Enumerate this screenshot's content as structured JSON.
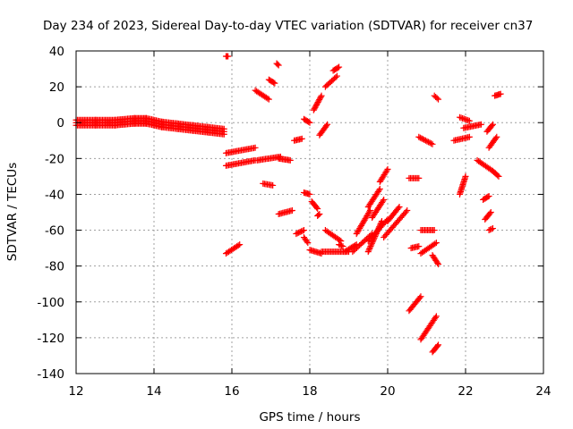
{
  "chart_data": {
    "type": "scatter",
    "title": "Day 234 of 2023, Sidereal Day-to-day VTEC variation (SDTVAR) for receiver cn37",
    "xlabel": "GPS time / hours",
    "ylabel": "SDTVAR / TECUs",
    "xlim": [
      12,
      24
    ],
    "ylim": [
      -140,
      40
    ],
    "xticks": [
      12,
      14,
      16,
      18,
      20,
      22,
      24
    ],
    "yticks": [
      -140,
      -120,
      -100,
      -80,
      -60,
      -40,
      -20,
      0,
      20,
      40
    ],
    "xtick_labels": [
      "12",
      "14",
      "16",
      "18",
      "20",
      "22",
      "24"
    ],
    "ytick_labels": [
      "-140",
      "-120",
      "-100",
      "-80",
      "-60",
      "-40",
      "-20",
      "0",
      "20",
      "40"
    ],
    "grid": true,
    "marker": "+",
    "color": "#ff0000",
    "series": [
      {
        "name": "main-band",
        "x": [
          12.0,
          12.5,
          13.0,
          13.5,
          13.8,
          14.2,
          14.6,
          15.0,
          15.4,
          15.8
        ],
        "y": [
          0,
          0,
          0,
          1,
          1,
          -1,
          -2,
          -3,
          -4,
          -5
        ]
      },
      {
        "name": "s01",
        "x": [
          15.85,
          16.6
        ],
        "y": [
          -17,
          -14
        ]
      },
      {
        "name": "s02",
        "x": [
          15.85,
          16.6
        ],
        "y": [
          -24,
          -21
        ]
      },
      {
        "name": "s03",
        "x": [
          15.85,
          16.2
        ],
        "y": [
          -73,
          -68
        ]
      },
      {
        "name": "s04",
        "x": [
          15.85,
          15.9
        ],
        "y": [
          37,
          37
        ]
      },
      {
        "name": "s05",
        "x": [
          16.6,
          16.95
        ],
        "y": [
          18,
          13
        ]
      },
      {
        "name": "s06",
        "x": [
          16.65,
          17.25
        ],
        "y": [
          -21,
          -19
        ]
      },
      {
        "name": "s07",
        "x": [
          16.8,
          17.05
        ],
        "y": [
          -34,
          -35
        ]
      },
      {
        "name": "s08",
        "x": [
          16.95,
          17.1
        ],
        "y": [
          24,
          22
        ]
      },
      {
        "name": "s09",
        "x": [
          17.15,
          17.2
        ],
        "y": [
          33,
          32
        ]
      },
      {
        "name": "s10",
        "x": [
          17.2,
          17.5
        ],
        "y": [
          -20,
          -21
        ]
      },
      {
        "name": "s11",
        "x": [
          17.2,
          17.55
        ],
        "y": [
          -51,
          -49
        ]
      },
      {
        "name": "s12",
        "x": [
          17.6,
          17.8
        ],
        "y": [
          -10,
          -9
        ]
      },
      {
        "name": "s13",
        "x": [
          17.65,
          17.85
        ],
        "y": [
          -62,
          -60
        ]
      },
      {
        "name": "s14",
        "x": [
          17.85,
          17.95
        ],
        "y": [
          -64,
          -67
        ]
      },
      {
        "name": "s15",
        "x": [
          17.85,
          18.0
        ],
        "y": [
          2,
          0
        ]
      },
      {
        "name": "s16",
        "x": [
          17.85,
          18.0
        ],
        "y": [
          -39,
          -40
        ]
      },
      {
        "name": "s17",
        "x": [
          18.0,
          18.3
        ],
        "y": [
          -71,
          -73
        ]
      },
      {
        "name": "s18",
        "x": [
          18.05,
          18.2
        ],
        "y": [
          -44,
          -48
        ]
      },
      {
        "name": "s19",
        "x": [
          18.1,
          18.3
        ],
        "y": [
          7,
          15
        ]
      },
      {
        "name": "s20",
        "x": [
          18.2,
          18.25
        ],
        "y": [
          -52,
          -51
        ]
      },
      {
        "name": "s21",
        "x": [
          18.25,
          18.45
        ],
        "y": [
          -7,
          -1
        ]
      },
      {
        "name": "s22",
        "x": [
          18.4,
          18.8
        ],
        "y": [
          -60,
          -66
        ]
      },
      {
        "name": "s23",
        "x": [
          18.4,
          18.7
        ],
        "y": [
          20,
          26
        ]
      },
      {
        "name": "s24",
        "x": [
          18.3,
          19.0
        ],
        "y": [
          -72,
          -72
        ]
      },
      {
        "name": "s25",
        "x": [
          18.6,
          18.75
        ],
        "y": [
          29,
          31
        ]
      },
      {
        "name": "s26",
        "x": [
          18.75,
          18.85
        ],
        "y": [
          -68,
          -69
        ]
      },
      {
        "name": "s27",
        "x": [
          18.9,
          19.2
        ],
        "y": [
          -72,
          -68
        ]
      },
      {
        "name": "s28",
        "x": [
          19.1,
          19.6
        ],
        "y": [
          -72,
          -62
        ]
      },
      {
        "name": "s29",
        "x": [
          19.2,
          19.55
        ],
        "y": [
          -62,
          -49
        ]
      },
      {
        "name": "s30",
        "x": [
          19.5,
          19.8
        ],
        "y": [
          -47,
          -37
        ]
      },
      {
        "name": "s31",
        "x": [
          19.5,
          19.85
        ],
        "y": [
          -72,
          -55
        ]
      },
      {
        "name": "s32",
        "x": [
          19.6,
          19.9
        ],
        "y": [
          -53,
          -43
        ]
      },
      {
        "name": "s33",
        "x": [
          19.5,
          20.0
        ],
        "y": [
          -66,
          -54
        ]
      },
      {
        "name": "s34",
        "x": [
          19.8,
          20.0
        ],
        "y": [
          -33,
          -26
        ]
      },
      {
        "name": "s35",
        "x": [
          19.9,
          20.5
        ],
        "y": [
          -64,
          -49
        ]
      },
      {
        "name": "s36",
        "x": [
          20.0,
          20.3
        ],
        "y": [
          -55,
          -47
        ]
      },
      {
        "name": "s37",
        "x": [
          20.55,
          20.8
        ],
        "y": [
          -31,
          -31
        ]
      },
      {
        "name": "s38",
        "x": [
          20.55,
          20.85
        ],
        "y": [
          -105,
          -97
        ]
      },
      {
        "name": "s39",
        "x": [
          20.6,
          20.8
        ],
        "y": [
          -70,
          -69
        ]
      },
      {
        "name": "s40",
        "x": [
          20.8,
          21.15
        ],
        "y": [
          -8,
          -12
        ]
      },
      {
        "name": "s41",
        "x": [
          20.85,
          21.2
        ],
        "y": [
          -60,
          -60
        ]
      },
      {
        "name": "s42",
        "x": [
          20.85,
          21.25
        ],
        "y": [
          -121,
          -108
        ]
      },
      {
        "name": "s43",
        "x": [
          20.85,
          21.25
        ],
        "y": [
          -73,
          -67
        ]
      },
      {
        "name": "s44",
        "x": [
          21.15,
          21.3
        ],
        "y": [
          -74,
          -79
        ]
      },
      {
        "name": "s45",
        "x": [
          21.15,
          21.3
        ],
        "y": [
          -128,
          -124
        ]
      },
      {
        "name": "s46",
        "x": [
          21.2,
          21.3
        ],
        "y": [
          15,
          13
        ]
      },
      {
        "name": "s47",
        "x": [
          21.7,
          22.1
        ],
        "y": [
          -10,
          -8
        ]
      },
      {
        "name": "s48",
        "x": [
          21.85,
          22.0
        ],
        "y": [
          -40,
          -30
        ]
      },
      {
        "name": "s49",
        "x": [
          21.85,
          22.1
        ],
        "y": [
          3,
          1
        ]
      },
      {
        "name": "s50",
        "x": [
          21.95,
          22.4
        ],
        "y": [
          -3,
          -1
        ]
      },
      {
        "name": "s51",
        "x": [
          22.3,
          22.7
        ],
        "y": [
          -21,
          -27
        ]
      },
      {
        "name": "s52",
        "x": [
          22.45,
          22.6
        ],
        "y": [
          -43,
          -41
        ]
      },
      {
        "name": "s53",
        "x": [
          22.5,
          22.65
        ],
        "y": [
          -54,
          -50
        ]
      },
      {
        "name": "s54",
        "x": [
          22.55,
          22.7
        ],
        "y": [
          -5,
          -1
        ]
      },
      {
        "name": "s55",
        "x": [
          22.6,
          22.8
        ],
        "y": [
          -14,
          -8
        ]
      },
      {
        "name": "s56",
        "x": [
          22.7,
          22.85
        ],
        "y": [
          -27,
          -30
        ]
      },
      {
        "name": "s57",
        "x": [
          22.75,
          22.9
        ],
        "y": [
          15,
          16
        ]
      },
      {
        "name": "s58",
        "x": [
          22.6,
          22.7
        ],
        "y": [
          -60,
          -59
        ]
      }
    ]
  }
}
